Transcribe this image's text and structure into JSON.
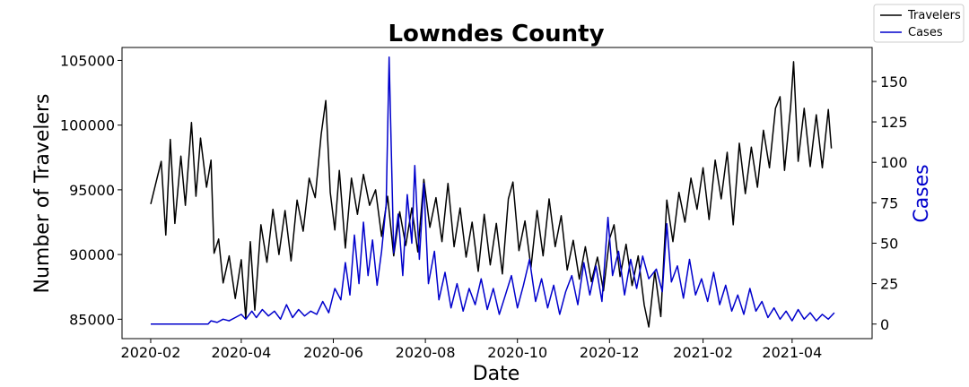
{
  "chart_data": {
    "type": "line",
    "title": "Lowndes County",
    "xlabel": "Date",
    "ylabel_left": "Number of Travelers",
    "ylabel_right": "Cases",
    "x_range": [
      "2020-01-01",
      "2021-05-31"
    ],
    "xlim": [
      "2020-01-13",
      "2021-05-24"
    ],
    "x_ticks": [
      "2020-02",
      "2020-04",
      "2020-06",
      "2020-08",
      "2020-10",
      "2020-12",
      "2021-02",
      "2021-04"
    ],
    "ylim_left": [
      83500,
      106000
    ],
    "y_ticks_left": [
      "85000",
      "90000",
      "95000",
      "100000",
      "105000"
    ],
    "ylim_right": [
      -9,
      171
    ],
    "y_ticks_right": [
      "0",
      "25",
      "50",
      "75",
      "100",
      "125",
      "150"
    ],
    "grid": false,
    "legend_position": "top-right",
    "series": [
      {
        "name": "Travelers",
        "color": "#000000",
        "axis": "left",
        "values": [
          [
            "2020-02-01",
            93900
          ],
          [
            "2020-02-05",
            95800
          ],
          [
            "2020-02-08",
            97200
          ],
          [
            "2020-02-11",
            91500
          ],
          [
            "2020-02-14",
            98900
          ],
          [
            "2020-02-17",
            92400
          ],
          [
            "2020-02-21",
            97600
          ],
          [
            "2020-02-24",
            93800
          ],
          [
            "2020-02-28",
            100200
          ],
          [
            "2020-03-02",
            94500
          ],
          [
            "2020-03-05",
            99000
          ],
          [
            "2020-03-09",
            95200
          ],
          [
            "2020-03-12",
            97300
          ],
          [
            "2020-03-14",
            90100
          ],
          [
            "2020-03-17",
            91200
          ],
          [
            "2020-03-20",
            87800
          ],
          [
            "2020-03-24",
            89900
          ],
          [
            "2020-03-28",
            86600
          ],
          [
            "2020-04-01",
            89600
          ],
          [
            "2020-04-04",
            85100
          ],
          [
            "2020-04-07",
            91000
          ],
          [
            "2020-04-10",
            85700
          ],
          [
            "2020-04-14",
            92300
          ],
          [
            "2020-04-18",
            89400
          ],
          [
            "2020-04-22",
            93500
          ],
          [
            "2020-04-26",
            90000
          ],
          [
            "2020-04-30",
            93400
          ],
          [
            "2020-05-04",
            89500
          ],
          [
            "2020-05-08",
            94200
          ],
          [
            "2020-05-12",
            91800
          ],
          [
            "2020-05-16",
            95900
          ],
          [
            "2020-05-20",
            94400
          ],
          [
            "2020-05-24",
            99300
          ],
          [
            "2020-05-27",
            101900
          ],
          [
            "2020-05-30",
            94800
          ],
          [
            "2020-06-02",
            91900
          ],
          [
            "2020-06-05",
            96500
          ],
          [
            "2020-06-09",
            90500
          ],
          [
            "2020-06-13",
            95900
          ],
          [
            "2020-06-17",
            93100
          ],
          [
            "2020-06-21",
            96200
          ],
          [
            "2020-06-25",
            93800
          ],
          [
            "2020-06-29",
            95000
          ],
          [
            "2020-07-03",
            91400
          ],
          [
            "2020-07-07",
            94500
          ],
          [
            "2020-07-11",
            89900
          ],
          [
            "2020-07-15",
            93300
          ],
          [
            "2020-07-19",
            90700
          ],
          [
            "2020-07-23",
            93600
          ],
          [
            "2020-07-27",
            90200
          ],
          [
            "2020-07-31",
            95800
          ],
          [
            "2020-08-04",
            92100
          ],
          [
            "2020-08-08",
            94400
          ],
          [
            "2020-08-12",
            91000
          ],
          [
            "2020-08-16",
            95500
          ],
          [
            "2020-08-20",
            90600
          ],
          [
            "2020-08-24",
            93600
          ],
          [
            "2020-08-28",
            89800
          ],
          [
            "2020-09-01",
            92500
          ],
          [
            "2020-09-05",
            88700
          ],
          [
            "2020-09-09",
            93100
          ],
          [
            "2020-09-13",
            89200
          ],
          [
            "2020-09-17",
            92400
          ],
          [
            "2020-09-21",
            88500
          ],
          [
            "2020-09-25",
            94300
          ],
          [
            "2020-09-28",
            95600
          ],
          [
            "2020-10-02",
            90300
          ],
          [
            "2020-10-06",
            92600
          ],
          [
            "2020-10-10",
            89000
          ],
          [
            "2020-10-14",
            93400
          ],
          [
            "2020-10-18",
            89900
          ],
          [
            "2020-10-22",
            94300
          ],
          [
            "2020-10-26",
            90600
          ],
          [
            "2020-10-30",
            93000
          ],
          [
            "2020-11-03",
            88800
          ],
          [
            "2020-11-07",
            91100
          ],
          [
            "2020-11-11",
            88100
          ],
          [
            "2020-11-15",
            90600
          ],
          [
            "2020-11-19",
            87900
          ],
          [
            "2020-11-23",
            89800
          ],
          [
            "2020-11-27",
            87200
          ],
          [
            "2020-12-01",
            91200
          ],
          [
            "2020-12-04",
            92300
          ],
          [
            "2020-12-08",
            88300
          ],
          [
            "2020-12-12",
            90800
          ],
          [
            "2020-12-16",
            87600
          ],
          [
            "2020-12-20",
            89900
          ],
          [
            "2020-12-24",
            86100
          ],
          [
            "2020-12-27",
            84400
          ],
          [
            "2020-12-31",
            88700
          ],
          [
            "2021-01-04",
            85200
          ],
          [
            "2021-01-08",
            94200
          ],
          [
            "2021-01-12",
            91000
          ],
          [
            "2021-01-16",
            94800
          ],
          [
            "2021-01-20",
            92500
          ],
          [
            "2021-01-24",
            95900
          ],
          [
            "2021-01-28",
            93500
          ],
          [
            "2021-02-01",
            96700
          ],
          [
            "2021-02-05",
            92700
          ],
          [
            "2021-02-09",
            97300
          ],
          [
            "2021-02-13",
            94300
          ],
          [
            "2021-02-17",
            97900
          ],
          [
            "2021-02-21",
            92300
          ],
          [
            "2021-02-25",
            98600
          ],
          [
            "2021-03-01",
            94700
          ],
          [
            "2021-03-05",
            98300
          ],
          [
            "2021-03-09",
            95200
          ],
          [
            "2021-03-13",
            99600
          ],
          [
            "2021-03-17",
            96700
          ],
          [
            "2021-03-21",
            101300
          ],
          [
            "2021-03-24",
            102200
          ],
          [
            "2021-03-27",
            96500
          ],
          [
            "2021-03-31",
            101400
          ],
          [
            "2021-04-02",
            104900
          ],
          [
            "2021-04-05",
            97200
          ],
          [
            "2021-04-09",
            101300
          ],
          [
            "2021-04-13",
            96800
          ],
          [
            "2021-04-17",
            100800
          ],
          [
            "2021-04-21",
            96700
          ],
          [
            "2021-04-25",
            101200
          ],
          [
            "2021-04-27",
            98200
          ]
        ]
      },
      {
        "name": "Cases",
        "color": "#0000cc",
        "axis": "right",
        "values": [
          [
            "2020-02-01",
            0
          ],
          [
            "2020-03-10",
            0
          ],
          [
            "2020-03-12",
            2
          ],
          [
            "2020-03-16",
            1
          ],
          [
            "2020-03-20",
            3
          ],
          [
            "2020-03-24",
            2
          ],
          [
            "2020-03-28",
            4
          ],
          [
            "2020-04-01",
            6
          ],
          [
            "2020-04-04",
            3
          ],
          [
            "2020-04-08",
            8
          ],
          [
            "2020-04-11",
            4
          ],
          [
            "2020-04-15",
            9
          ],
          [
            "2020-04-19",
            5
          ],
          [
            "2020-04-23",
            8
          ],
          [
            "2020-04-27",
            3
          ],
          [
            "2020-05-01",
            12
          ],
          [
            "2020-05-05",
            4
          ],
          [
            "2020-05-09",
            9
          ],
          [
            "2020-05-13",
            5
          ],
          [
            "2020-05-17",
            8
          ],
          [
            "2020-05-21",
            6
          ],
          [
            "2020-05-25",
            14
          ],
          [
            "2020-05-29",
            7
          ],
          [
            "2020-06-02",
            22
          ],
          [
            "2020-06-06",
            15
          ],
          [
            "2020-06-09",
            38
          ],
          [
            "2020-06-12",
            18
          ],
          [
            "2020-06-15",
            55
          ],
          [
            "2020-06-18",
            25
          ],
          [
            "2020-06-21",
            63
          ],
          [
            "2020-06-24",
            30
          ],
          [
            "2020-06-27",
            52
          ],
          [
            "2020-06-30",
            24
          ],
          [
            "2020-07-03",
            45
          ],
          [
            "2020-07-06",
            74
          ],
          [
            "2020-07-08",
            165
          ],
          [
            "2020-07-11",
            44
          ],
          [
            "2020-07-14",
            68
          ],
          [
            "2020-07-17",
            30
          ],
          [
            "2020-07-20",
            80
          ],
          [
            "2020-07-23",
            50
          ],
          [
            "2020-07-25",
            98
          ],
          [
            "2020-07-28",
            40
          ],
          [
            "2020-07-31",
            87
          ],
          [
            "2020-08-03",
            25
          ],
          [
            "2020-08-07",
            45
          ],
          [
            "2020-08-10",
            15
          ],
          [
            "2020-08-14",
            32
          ],
          [
            "2020-08-18",
            10
          ],
          [
            "2020-08-22",
            25
          ],
          [
            "2020-08-26",
            8
          ],
          [
            "2020-08-30",
            22
          ],
          [
            "2020-09-03",
            12
          ],
          [
            "2020-09-07",
            28
          ],
          [
            "2020-09-11",
            9
          ],
          [
            "2020-09-15",
            22
          ],
          [
            "2020-09-19",
            6
          ],
          [
            "2020-09-23",
            18
          ],
          [
            "2020-09-27",
            30
          ],
          [
            "2020-10-01",
            10
          ],
          [
            "2020-10-05",
            24
          ],
          [
            "2020-10-09",
            40
          ],
          [
            "2020-10-13",
            14
          ],
          [
            "2020-10-17",
            28
          ],
          [
            "2020-10-21",
            10
          ],
          [
            "2020-10-25",
            24
          ],
          [
            "2020-10-29",
            6
          ],
          [
            "2020-11-02",
            20
          ],
          [
            "2020-11-06",
            30
          ],
          [
            "2020-11-10",
            12
          ],
          [
            "2020-11-14",
            38
          ],
          [
            "2020-11-18",
            18
          ],
          [
            "2020-11-22",
            36
          ],
          [
            "2020-11-26",
            14
          ],
          [
            "2020-11-30",
            66
          ],
          [
            "2020-12-03",
            30
          ],
          [
            "2020-12-07",
            45
          ],
          [
            "2020-12-11",
            18
          ],
          [
            "2020-12-15",
            40
          ],
          [
            "2020-12-19",
            22
          ],
          [
            "2020-12-23",
            42
          ],
          [
            "2020-12-27",
            28
          ],
          [
            "2021-01-01",
            34
          ],
          [
            "2021-01-05",
            20
          ],
          [
            "2021-01-08",
            62
          ],
          [
            "2021-01-11",
            26
          ],
          [
            "2021-01-15",
            36
          ],
          [
            "2021-01-19",
            16
          ],
          [
            "2021-01-23",
            40
          ],
          [
            "2021-01-27",
            18
          ],
          [
            "2021-01-31",
            28
          ],
          [
            "2021-02-04",
            14
          ],
          [
            "2021-02-08",
            32
          ],
          [
            "2021-02-12",
            12
          ],
          [
            "2021-02-16",
            24
          ],
          [
            "2021-02-20",
            8
          ],
          [
            "2021-02-24",
            18
          ],
          [
            "2021-02-28",
            6
          ],
          [
            "2021-03-04",
            22
          ],
          [
            "2021-03-08",
            8
          ],
          [
            "2021-03-12",
            14
          ],
          [
            "2021-03-16",
            4
          ],
          [
            "2021-03-20",
            10
          ],
          [
            "2021-03-24",
            3
          ],
          [
            "2021-03-28",
            8
          ],
          [
            "2021-04-01",
            2
          ],
          [
            "2021-04-05",
            9
          ],
          [
            "2021-04-09",
            3
          ],
          [
            "2021-04-13",
            7
          ],
          [
            "2021-04-17",
            2
          ],
          [
            "2021-04-21",
            6
          ],
          [
            "2021-04-25",
            3
          ],
          [
            "2021-04-29",
            7
          ]
        ]
      }
    ]
  }
}
